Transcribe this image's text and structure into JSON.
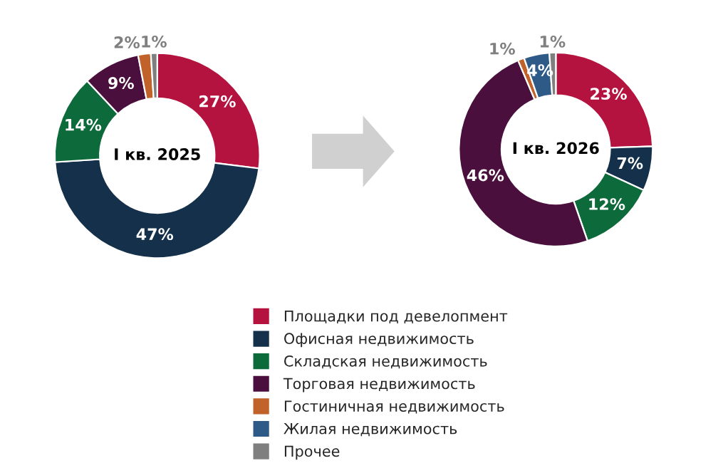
{
  "chart_data": [
    {
      "type": "donut",
      "title": "I кв. 2025",
      "categories": [
        null,
        null,
        null,
        null,
        null,
        null
      ],
      "values": [
        27,
        47,
        14,
        9,
        2,
        1
      ],
      "colors": [
        "#b5133f",
        "#14304a",
        "#0d6a3a",
        "#4a0f3c",
        "#c0622a",
        "#7f7f7f"
      ],
      "value_labels": [
        "27%",
        "47%",
        "14%",
        "9%",
        "2%",
        "1%"
      ]
    },
    {
      "type": "donut",
      "title": "I кв. 2026",
      "categories": [
        "Площадки под девелопмент",
        "Офисная недвижимость",
        "Складская недвижимость",
        "Торговая недвижимость",
        "Гостиничная недвижимость",
        "Жилая недвижимость",
        "Прочее"
      ],
      "values": [
        23,
        7,
        12,
        46,
        1,
        4,
        1
      ],
      "colors": [
        "#b5133f",
        "#14304a",
        "#0d6a3a",
        "#4a0f3c",
        "#c0622a",
        "#2d5a87",
        "#7f7f7f"
      ],
      "value_labels": [
        "23%",
        "7%",
        "12%",
        "46%",
        "1%",
        "4%",
        "1%"
      ],
      "legend": "bottom"
    }
  ]
}
